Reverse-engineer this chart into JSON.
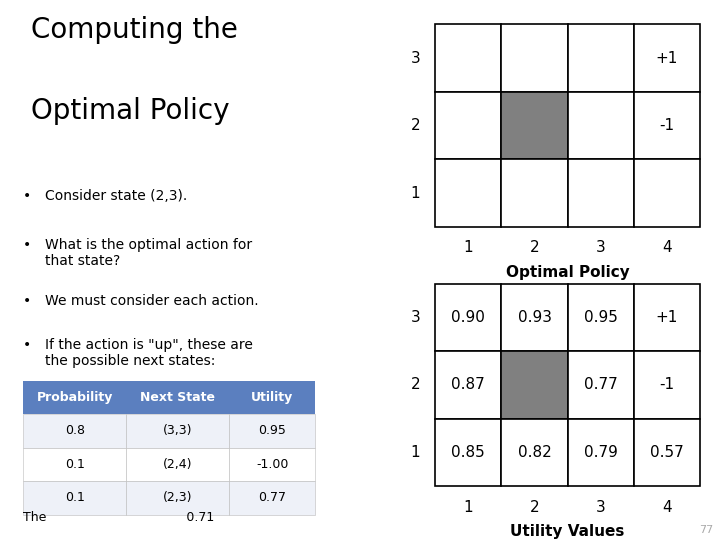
{
  "title_line1": "Computing the",
  "title_line2": "Optimal Policy",
  "bullets": [
    "Consider state (2,3).",
    "What is the optimal action for\nthat state?",
    "We must consider each action.",
    "If the action is \"up\", these are\nthe possible next states:"
  ],
  "table_headers": [
    "Probability",
    "Next State",
    "Utility"
  ],
  "table_rows": [
    [
      "0.8",
      "(3,3)",
      "0.95"
    ],
    [
      "0.1",
      "(2,4)",
      "-1.00"
    ],
    [
      "0.1",
      "(2,3)",
      "0.77"
    ]
  ],
  "table_header_color": "#5B7FBF",
  "table_row_color_odd": "#EEF1F8",
  "table_row_color_even": "#FFFFFF",
  "bottom_text": "The                                   0.71",
  "grid1_title": "Optimal Policy",
  "grid1_special_cell": [
    1,
    1
  ],
  "grid1_special_color": "#808080",
  "grid1_labels": {
    "row_labels": [
      "3",
      "2",
      "1"
    ],
    "col_labels": [
      "1",
      "2",
      "3",
      "4"
    ],
    "cell_texts": {
      "0,3": "+1",
      "1,3": "-1"
    }
  },
  "grid2_title": "Utility Values",
  "grid2_special_cell": [
    1,
    1
  ],
  "grid2_special_color": "#808080",
  "grid2_labels": {
    "row_labels": [
      "3",
      "2",
      "1"
    ],
    "col_labels": [
      "1",
      "2",
      "3",
      "4"
    ],
    "cell_texts": {
      "0,0": "0.90",
      "0,1": "0.93",
      "0,2": "0.95",
      "0,3": "+1",
      "1,0": "0.87",
      "1,2": "0.77",
      "1,3": "-1",
      "2,0": "0.85",
      "2,1": "0.82",
      "2,2": "0.79",
      "2,3": "0.57"
    }
  },
  "page_number": "77",
  "background_color": "#FFFFFF",
  "text_color": "#000000",
  "font_size_title": 20,
  "font_size_bullet": 10,
  "font_size_table_header": 9,
  "font_size_table_body": 9,
  "font_size_grid_cell": 11,
  "font_size_grid_label": 11,
  "font_size_grid_title": 11,
  "font_size_page": 8
}
